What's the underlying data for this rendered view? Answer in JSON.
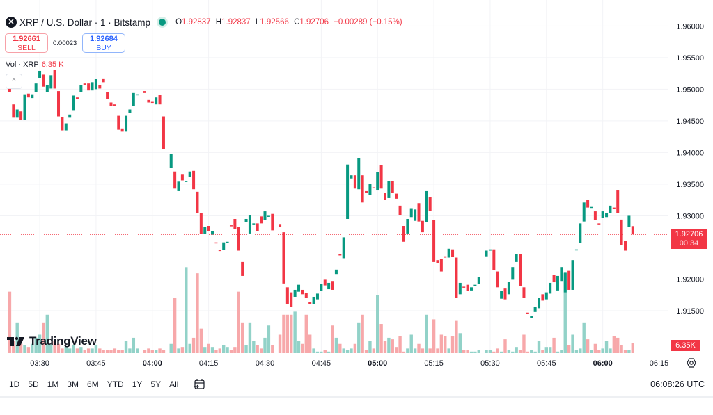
{
  "header": {
    "symbol_icon": "xrp-logo-icon",
    "title": "XRP / U.S. Dollar · 1 · Bitstamp",
    "market_status": "market-open-dot",
    "ohlc": {
      "o_label": "O",
      "o": "1.92837",
      "h_label": "H",
      "h": "1.92837",
      "l_label": "L",
      "l": "1.92566",
      "c_label": "C",
      "c": "1.92706",
      "change": "−0.00289 (−0.15%)"
    }
  },
  "trade": {
    "sell_price": "1.92661",
    "sell_label": "SELL",
    "spread": "0.00023",
    "buy_price": "1.92684",
    "buy_label": "BUY"
  },
  "volume_legend": {
    "label": "Vol · XRP",
    "value": "6.35 K"
  },
  "collapse_icon": "chevron-up-icon",
  "collapse_glyph": "^",
  "logo": {
    "text": "TradingView"
  },
  "price_axis": {
    "ticks": [
      "1.96000",
      "1.95500",
      "1.95000",
      "1.94500",
      "1.94000",
      "1.93500",
      "1.93000",
      "1.92000",
      "1.91500"
    ],
    "current_price": "1.92706",
    "countdown": "00:34",
    "volume_tag": "6.35K"
  },
  "time_axis": {
    "ticks": [
      {
        "t": "03:30",
        "bold": false
      },
      {
        "t": "03:45",
        "bold": false
      },
      {
        "t": "04:00",
        "bold": true
      },
      {
        "t": "04:15",
        "bold": false
      },
      {
        "t": "04:30",
        "bold": false
      },
      {
        "t": "04:45",
        "bold": false
      },
      {
        "t": "05:00",
        "bold": true
      },
      {
        "t": "05:15",
        "bold": false
      },
      {
        "t": "05:30",
        "bold": false
      },
      {
        "t": "05:45",
        "bold": false
      },
      {
        "t": "06:00",
        "bold": true
      },
      {
        "t": "06:15",
        "bold": false
      }
    ]
  },
  "bottom_bar": {
    "timeframes": [
      "1D",
      "5D",
      "1M",
      "3M",
      "6M",
      "YTD",
      "1Y",
      "5Y",
      "All"
    ],
    "goto_icon": "calendar-goto-icon",
    "clock": "06:08:26 UTC",
    "settings_icon": "gear-icon"
  },
  "colors": {
    "up": "#089981",
    "down": "#f23645",
    "up_volume": "#92d2c8",
    "down_volume": "#f7a8aa",
    "grid": "#f2f3f6"
  },
  "chart_data": {
    "type": "candlestick",
    "interval": "1 minute",
    "xlim": [
      "03:19:25",
      "06:17:30"
    ],
    "ylim": [
      1.9083,
      1.9641
    ],
    "volume_ylim_k": [
      0,
      230
    ],
    "grid": true,
    "columns": [
      "time",
      "open",
      "close",
      "volume_k"
    ],
    "candles": [
      [
        "03:22",
        1.952,
        1.9496,
        40
      ],
      [
        "03:23",
        1.9476,
        1.9455,
        8
      ],
      [
        "03:24",
        1.9455,
        1.9468,
        20
      ],
      [
        "03:25",
        1.9465,
        1.9451,
        6
      ],
      [
        "03:26",
        1.9451,
        1.9492,
        5
      ],
      [
        "03:27",
        1.9493,
        1.9487,
        4
      ],
      [
        "03:28",
        1.9486,
        1.9492,
        6
      ],
      [
        "03:29",
        1.9496,
        1.9509,
        10
      ],
      [
        "03:30",
        1.9518,
        1.9529,
        12
      ],
      [
        "03:31",
        1.9523,
        1.9504,
        20
      ],
      [
        "03:32",
        1.9496,
        1.9507,
        25
      ],
      [
        "03:33",
        1.9501,
        1.9522,
        6
      ],
      [
        "03:34",
        1.9531,
        1.9501,
        8
      ],
      [
        "03:35",
        1.9497,
        1.9457,
        6
      ],
      [
        "03:36",
        1.9456,
        1.9435,
        3
      ],
      [
        "03:37",
        1.9435,
        1.9446,
        4
      ],
      [
        "03:38",
        1.9455,
        1.946,
        3
      ],
      [
        "03:39",
        1.9467,
        1.949,
        5
      ],
      [
        "03:40",
        1.9487,
        1.9485,
        3
      ],
      [
        "03:41",
        1.9496,
        1.9507,
        4
      ],
      [
        "03:42",
        1.9509,
        1.9507,
        2
      ],
      [
        "03:43",
        1.9509,
        1.9498,
        3
      ],
      [
        "03:44",
        1.9498,
        1.9511,
        3
      ],
      [
        "03:45",
        1.95,
        1.9516,
        5
      ],
      [
        "03:46",
        1.9507,
        1.9501,
        3
      ],
      [
        "03:47",
        1.9517,
        1.9511,
        2
      ],
      [
        "03:48",
        1.9496,
        1.9485,
        2
      ],
      [
        "03:49",
        1.9479,
        1.9474,
        2
      ],
      [
        "03:50",
        1.9476,
        1.9474,
        3
      ],
      [
        "03:51",
        1.9458,
        1.9436,
        2
      ],
      [
        "03:52",
        1.9438,
        1.9433,
        2
      ],
      [
        "03:53",
        1.9433,
        1.9458,
        8
      ],
      [
        "03:54",
        1.9463,
        1.9468,
        3
      ],
      [
        "03:55",
        1.9473,
        1.9494,
        10
      ],
      [
        "03:56",
        1.9491,
        1.9492,
        3
      ],
      [
        "03:58",
        1.9497,
        1.9494,
        2
      ],
      [
        "03:59",
        1.9483,
        1.9479,
        3
      ],
      [
        "04:00",
        1.948,
        1.9479,
        2
      ],
      [
        "04:01",
        1.9476,
        1.9487,
        2
      ],
      [
        "04:02",
        1.9491,
        1.9476,
        3
      ],
      [
        "04:03",
        1.9457,
        1.9405,
        2
      ],
      [
        "04:05",
        1.9376,
        1.9398,
        6
      ],
      [
        "04:06",
        1.937,
        1.9343,
        36
      ],
      [
        "04:07",
        1.9339,
        1.9354,
        3
      ],
      [
        "04:08",
        1.9365,
        1.9356,
        4
      ],
      [
        "04:09",
        1.9354,
        1.9355,
        56
      ],
      [
        "04:10",
        1.9362,
        1.937,
        6
      ],
      [
        "04:11",
        1.9371,
        1.9342,
        10
      ],
      [
        "04:12",
        1.9338,
        1.9304,
        52
      ],
      [
        "04:13",
        1.9304,
        1.9271,
        16
      ],
      [
        "04:14",
        1.9271,
        1.9282,
        4
      ],
      [
        "04:15",
        1.9284,
        1.9276,
        6
      ],
      [
        "04:16",
        1.927,
        1.9276,
        4
      ],
      [
        "04:17",
        1.9258,
        1.9257,
        2
      ],
      [
        "04:18",
        1.9246,
        1.9245,
        3
      ],
      [
        "04:19",
        1.9246,
        1.9258,
        5
      ],
      [
        "04:20",
        1.9258,
        1.9259,
        4
      ],
      [
        "04:21",
        1.9285,
        1.9284,
        2
      ],
      [
        "04:22",
        1.9295,
        1.9279,
        4
      ],
      [
        "04:23",
        1.9282,
        1.9245,
        40
      ],
      [
        "04:24",
        1.9227,
        1.9205,
        20
      ],
      [
        "04:25",
        1.929,
        1.9295,
        5
      ],
      [
        "04:26",
        1.9272,
        1.9301,
        20
      ],
      [
        "04:27",
        1.9287,
        1.9288,
        8
      ],
      [
        "04:28",
        1.9288,
        1.9276,
        5
      ],
      [
        "04:29",
        1.9299,
        1.9288,
        3
      ],
      [
        "04:30",
        1.9293,
        1.9307,
        10
      ],
      [
        "04:31",
        1.9299,
        1.93,
        18
      ],
      [
        "04:32",
        1.9303,
        1.9277,
        5
      ],
      [
        "04:34",
        1.9287,
        1.9282,
        12
      ],
      [
        "04:35",
        1.9274,
        1.9193,
        25
      ],
      [
        "04:36",
        1.9187,
        1.9161,
        25
      ],
      [
        "04:37",
        1.9179,
        1.9156,
        25
      ],
      [
        "04:38",
        1.9172,
        1.9183,
        27
      ],
      [
        "04:39",
        1.918,
        1.9191,
        8
      ],
      [
        "04:40",
        1.9183,
        1.9176,
        6
      ],
      [
        "04:41",
        1.9178,
        1.917,
        25
      ],
      [
        "04:42",
        1.9164,
        1.916,
        12
      ],
      [
        "04:43",
        1.916,
        1.9172,
        3
      ],
      [
        "04:44",
        1.9168,
        1.9177,
        1
      ],
      [
        "04:45",
        1.9181,
        1.9192,
        1
      ],
      [
        "04:46",
        1.9199,
        1.919,
        2
      ],
      [
        "04:47",
        1.9184,
        1.9194,
        1
      ],
      [
        "04:48",
        1.9197,
        1.9183,
        18
      ],
      [
        "04:49",
        1.9208,
        1.9215,
        10
      ],
      [
        "04:50",
        1.9239,
        1.9238,
        6
      ],
      [
        "04:51",
        1.9233,
        1.9266,
        3
      ],
      [
        "04:52",
        1.9295,
        1.9381,
        2
      ],
      [
        "04:53",
        1.9359,
        1.9364,
        3
      ],
      [
        "04:54",
        1.9364,
        1.9343,
        6
      ],
      [
        "04:55",
        1.9342,
        1.9391,
        20
      ],
      [
        "04:56",
        1.9364,
        1.9321,
        25
      ],
      [
        "04:57",
        1.9339,
        1.9336,
        2
      ],
      [
        "04:58",
        1.9333,
        1.9351,
        8
      ],
      [
        "04:59",
        1.9345,
        1.9344,
        3
      ],
      [
        "05:00",
        1.934,
        1.9369,
        38
      ],
      [
        "05:01",
        1.938,
        1.9343,
        19
      ],
      [
        "05:02",
        1.9336,
        1.9325,
        8
      ],
      [
        "05:03",
        1.9328,
        1.9355,
        10
      ],
      [
        "05:04",
        1.9355,
        1.9336,
        9
      ],
      [
        "05:05",
        1.9335,
        1.9327,
        4
      ],
      [
        "05:06",
        1.9316,
        1.9301,
        11
      ],
      [
        "05:07",
        1.9284,
        1.9259,
        1
      ],
      [
        "05:08",
        1.9272,
        1.9295,
        3
      ],
      [
        "05:09",
        1.9298,
        1.9312,
        12
      ],
      [
        "05:10",
        1.9292,
        1.931,
        3
      ],
      [
        "05:11",
        1.932,
        1.9291,
        6
      ],
      [
        "05:12",
        1.9292,
        1.9274,
        3
      ],
      [
        "05:13",
        1.929,
        1.9339,
        25
      ],
      [
        "05:14",
        1.933,
        1.9308,
        3
      ],
      [
        "05:15",
        1.9293,
        1.9227,
        22
      ],
      [
        "05:16",
        1.923,
        1.9225,
        3
      ],
      [
        "05:17",
        1.9232,
        1.9212,
        12
      ],
      [
        "05:18",
        1.9236,
        1.9234,
        11
      ],
      [
        "05:19",
        1.9234,
        1.9248,
        3
      ],
      [
        "05:20",
        1.9247,
        1.9235,
        11
      ],
      [
        "05:21",
        1.9234,
        1.917,
        21
      ],
      [
        "05:22",
        1.9176,
        1.9194,
        13
      ],
      [
        "05:23",
        1.9188,
        1.9187,
        2
      ],
      [
        "05:24",
        1.9191,
        1.9181,
        2
      ],
      [
        "05:25",
        1.9182,
        1.9187,
        1
      ],
      [
        "05:26",
        1.9189,
        1.9191,
        1
      ],
      [
        "05:27",
        1.9192,
        1.9203,
        2
      ],
      [
        "05:29",
        1.9236,
        1.9245,
        2
      ],
      [
        "05:30",
        1.9245,
        1.9247,
        2
      ],
      [
        "05:31",
        1.9247,
        1.9214,
        1
      ],
      [
        "05:32",
        1.9212,
        1.9187,
        3
      ],
      [
        "05:33",
        1.9169,
        1.9181,
        1
      ],
      [
        "05:34",
        1.9185,
        1.9168,
        9
      ],
      [
        "05:35",
        1.9176,
        1.9196,
        2
      ],
      [
        "05:36",
        1.9199,
        1.9219,
        1
      ],
      [
        "05:37",
        1.9227,
        1.924,
        4
      ],
      [
        "05:38",
        1.924,
        1.9189,
        2
      ],
      [
        "05:39",
        1.9187,
        1.917,
        12
      ],
      [
        "05:40",
        1.9147,
        1.9145,
        1
      ],
      [
        "05:41",
        1.9138,
        1.9142,
        2
      ],
      [
        "05:42",
        1.9148,
        1.9156,
        1
      ],
      [
        "05:43",
        1.9154,
        1.917,
        8
      ],
      [
        "05:44",
        1.9176,
        1.9166,
        2
      ],
      [
        "05:45",
        1.9168,
        1.9179,
        4
      ],
      [
        "05:46",
        1.9177,
        1.9194,
        4
      ],
      [
        "05:47",
        1.9207,
        1.9195,
        10
      ],
      [
        "05:48",
        1.9182,
        1.9205,
        1
      ],
      [
        "05:49",
        1.9197,
        1.9219,
        2
      ],
      [
        "05:50",
        1.9179,
        1.921,
        52
      ],
      [
        "05:51",
        1.9213,
        1.9183,
        5
      ],
      [
        "05:52",
        1.9183,
        1.923,
        12
      ],
      [
        "05:53",
        1.9246,
        1.9247,
        2
      ],
      [
        "05:54",
        1.9257,
        1.9288,
        3
      ],
      [
        "05:55",
        1.9291,
        1.9321,
        20
      ],
      [
        "05:56",
        1.9325,
        1.9313,
        9
      ],
      [
        "05:57",
        1.9313,
        1.9314,
        2
      ],
      [
        "05:58",
        1.9307,
        1.9293,
        6
      ],
      [
        "05:59",
        1.9288,
        1.9287,
        2
      ],
      [
        "06:00",
        1.9297,
        1.9307,
        3
      ],
      [
        "06:01",
        1.9298,
        1.9304,
        8
      ],
      [
        "06:02",
        1.9304,
        1.9316,
        3
      ],
      [
        "06:03",
        1.9313,
        1.9311,
        11
      ],
      [
        "06:04",
        1.934,
        1.9304,
        10
      ],
      [
        "06:05",
        1.9294,
        1.9254,
        5
      ],
      [
        "06:06",
        1.926,
        1.9245,
        2
      ],
      [
        "06:07",
        1.9282,
        1.93,
        2
      ],
      [
        "06:08",
        1.92837,
        1.92706,
        6.35
      ]
    ],
    "current_price": 1.92706
  }
}
